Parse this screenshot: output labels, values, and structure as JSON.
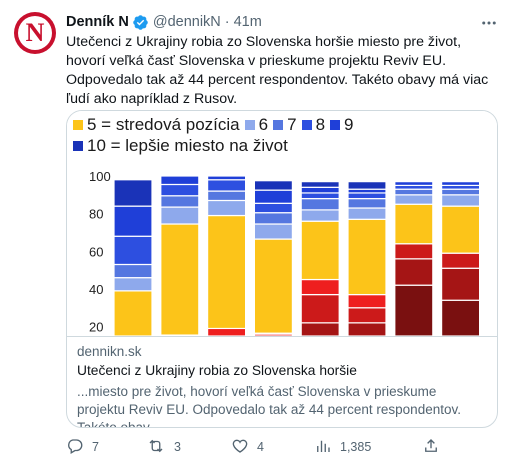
{
  "author": {
    "name": "Denník N",
    "handle": "@dennikN",
    "separator": "·",
    "time": "41m",
    "avatar_letter": "N",
    "brand_color": "#c8102e"
  },
  "tweet_text": "Utečenci z Ukrajiny robia zo Slovenska horšie miesto pre život, hovorí veľká časť Slovenska v prieskume projektu Reviv EU. Odpovedalo tak až 44 percent respondentov. Takéto obavy má viac ľudí ako napríklad z Rusov.",
  "more_icon": "more-dots-icon",
  "card": {
    "domain": "dennikn.sk",
    "title": "Utečenci z Ukrajiny robia zo Slovenska horšie",
    "description": "...miesto pre život, hovorí veľká časť Slovenska v prieskume projektu Reviv EU. Odpovedalo tak až 44 percent respondentov. Takéto obav..."
  },
  "actions": {
    "reply": "7",
    "retweet": "3",
    "like": "4",
    "views": "1,385"
  },
  "chart_data": {
    "type": "bar",
    "stacked": true,
    "legend": [
      {
        "label": "5 = stredová pozícia",
        "color": "#fcc419"
      },
      {
        "label": "6",
        "color": "#8ea9ec"
      },
      {
        "label": "7",
        "color": "#5577e0"
      },
      {
        "label": "8",
        "color": "#2d4fe0"
      },
      {
        "label": "9",
        "color": "#1f3fd8"
      },
      {
        "label": "10 = lepšie miesto na život",
        "color": "#1a33b8"
      }
    ],
    "y_ticks": [
      "100",
      "80",
      "60",
      "40",
      "20"
    ],
    "ylim": [
      0,
      100
    ],
    "visible_ymin": 15,
    "segment_colors": {
      "r1": "#7a1010",
      "r2": "#a51515",
      "r3": "#cc1a1a",
      "r4": "#ee1f1f",
      "c5": "#fcc419",
      "b6": "#8ea9ec",
      "b7": "#5577e0",
      "b8": "#2d4fe0",
      "b9": "#1f3fd8",
      "b10": "#1a33b8"
    },
    "bars": [
      {
        "segments": [
          [
            "c5",
            39
          ],
          [
            "b6",
            7
          ],
          [
            "b7",
            7
          ],
          [
            "b8",
            15
          ],
          [
            "b9",
            16
          ],
          [
            "b10",
            14
          ]
        ]
      },
      {
        "segments": [
          [
            "r4",
            17
          ],
          [
            "c5",
            59
          ],
          [
            "b6",
            9
          ],
          [
            "b7",
            6
          ],
          [
            "b8",
            6
          ],
          [
            "b9",
            7
          ],
          [
            "b10",
            5
          ]
        ]
      },
      {
        "segments": [
          [
            "r4",
            21
          ],
          [
            "c5",
            60
          ],
          [
            "b6",
            8
          ],
          [
            "b7",
            5
          ],
          [
            "b8",
            6
          ],
          [
            "b9",
            3
          ],
          [
            "b10",
            5
          ]
        ]
      },
      {
        "segments": [
          [
            "r4",
            16
          ],
          [
            "c5",
            50
          ],
          [
            "b6",
            8
          ],
          [
            "b7",
            6
          ],
          [
            "b8",
            5
          ],
          [
            "b9",
            7
          ],
          [
            "b10",
            5
          ]
        ]
      },
      {
        "segments": [
          [
            "r2",
            22
          ],
          [
            "r3",
            37
          ],
          [
            "r4",
            45
          ],
          [
            "c5",
            76
          ],
          [
            "b6",
            82
          ],
          [
            "b7",
            88
          ],
          [
            "b8",
            91
          ],
          [
            "b9",
            94
          ],
          [
            "b10",
            97
          ]
        ],
        "cumulative": true
      },
      {
        "segments": [
          [
            "r2",
            22
          ],
          [
            "r3",
            30
          ],
          [
            "r4",
            37
          ],
          [
            "c5",
            77
          ],
          [
            "b6",
            83
          ],
          [
            "b7",
            88
          ],
          [
            "b8",
            91
          ],
          [
            "b9",
            93
          ],
          [
            "b10",
            97
          ]
        ],
        "cumulative": true
      },
      {
        "segments": [
          [
            "r1",
            42
          ],
          [
            "r2",
            56
          ],
          [
            "r3",
            64
          ],
          [
            "c5",
            85
          ],
          [
            "b6",
            90
          ],
          [
            "b7",
            93
          ],
          [
            "b8",
            95
          ],
          [
            "b9",
            97
          ]
        ],
        "cumulative": true
      },
      {
        "segments": [
          [
            "r1",
            34
          ],
          [
            "r2",
            51
          ],
          [
            "r3",
            59
          ],
          [
            "c5",
            84
          ],
          [
            "b6",
            90
          ],
          [
            "b7",
            93
          ],
          [
            "b8",
            95
          ],
          [
            "b9",
            97
          ]
        ],
        "cumulative": true
      }
    ]
  }
}
